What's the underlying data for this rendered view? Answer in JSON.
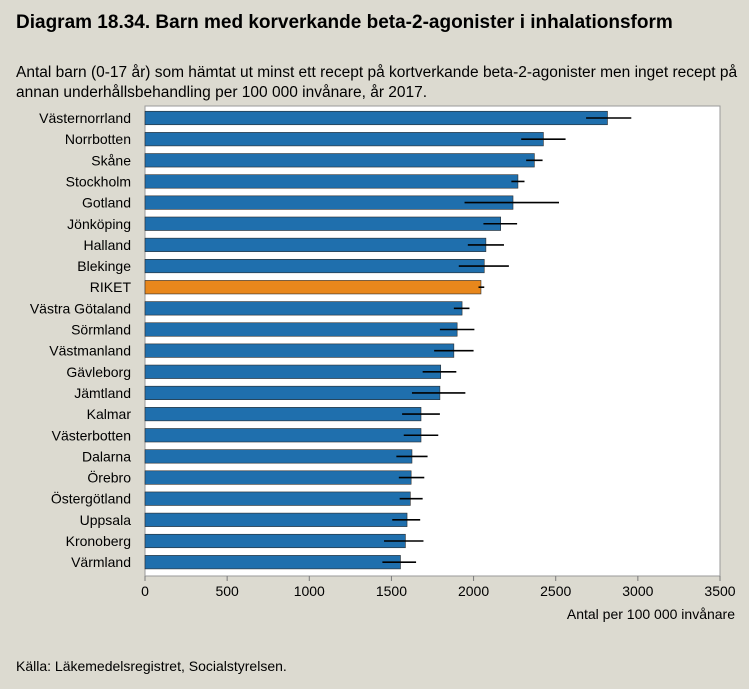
{
  "chart_data": {
    "type": "bar",
    "orientation": "horizontal",
    "title": "Diagram 18.34. Barn med korverkande beta-2-agonister i inhalationsform",
    "subtitle": "Antal barn (0-17 år) som hämtat ut minst ett recept på kortverkande beta-2-agonister men inget recept på annan underhållsbehandling per 100 000 invånare, år 2017.",
    "xlabel": "Antal per 100 000 invånare",
    "ylabel": "",
    "xlim": [
      0,
      3500
    ],
    "xticks": [
      0,
      500,
      1000,
      1500,
      2000,
      2500,
      3000,
      3500
    ],
    "grid": false,
    "legend": "none",
    "colors": {
      "bar": "#1f6fad",
      "highlight": "#e8871c",
      "error": "#000000"
    },
    "highlight": "RIKET",
    "categories": [
      "Västernorrland",
      "Norrbotten",
      "Skåne",
      "Stockholm",
      "Gotland",
      "Jönköping",
      "Halland",
      "Blekinge",
      "RIKET",
      "Västra Götaland",
      "Sörmland",
      "Västmanland",
      "Gävleborg",
      "Jämtland",
      "Kalmar",
      "Västerbotten",
      "Dalarna",
      "Örebro",
      "Östergötland",
      "Uppsala",
      "Kronoberg",
      "Värmland"
    ],
    "values": [
      2815,
      2425,
      2370,
      2270,
      2240,
      2165,
      2075,
      2065,
      2045,
      1930,
      1900,
      1880,
      1800,
      1795,
      1680,
      1680,
      1625,
      1620,
      1615,
      1595,
      1585,
      1555
    ],
    "error_low": [
      2685,
      2290,
      2320,
      2230,
      1945,
      2060,
      1965,
      1910,
      2030,
      1880,
      1795,
      1760,
      1690,
      1625,
      1565,
      1575,
      1530,
      1545,
      1550,
      1505,
      1455,
      1445
    ],
    "error_high": [
      2960,
      2560,
      2420,
      2310,
      2520,
      2265,
      2185,
      2215,
      2065,
      1975,
      2005,
      2000,
      1895,
      1950,
      1795,
      1785,
      1720,
      1700,
      1690,
      1675,
      1695,
      1650
    ]
  },
  "source": "Källa: Läkemedelsregistret, Socialstyrelsen."
}
